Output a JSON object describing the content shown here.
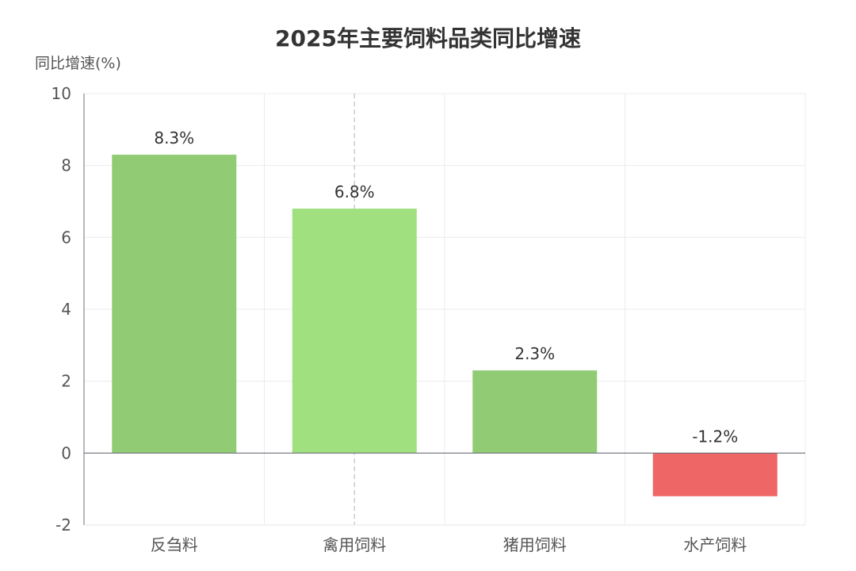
{
  "chart_data": {
    "type": "bar",
    "title": "2025年主要饲料品类同比增速",
    "ylabel": "同比增速(%)",
    "xlabel": "",
    "categories": [
      "反刍料",
      "禽用饲料",
      "猪用饲料",
      "水产饲料"
    ],
    "values": [
      8.3,
      6.8,
      2.3,
      -1.2
    ],
    "data_labels": [
      "8.3%",
      "6.8%",
      "2.3%",
      "-1.2%"
    ],
    "bar_colors": [
      "#91cc75",
      "#a0e07f",
      "#91cc75",
      "#ee6666"
    ],
    "ylim": [
      -2,
      10
    ],
    "yticks": [
      -2,
      0,
      2,
      4,
      6,
      8,
      10
    ],
    "grid": true,
    "legend": "none"
  }
}
